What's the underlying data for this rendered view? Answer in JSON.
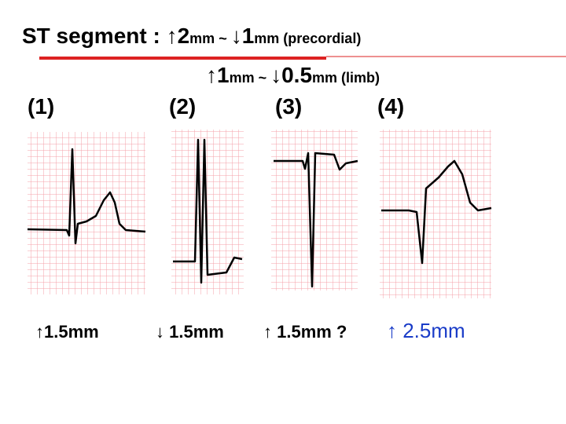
{
  "title": {
    "line1": [
      "ST segment : ↑2",
      "mm",
      " ~ ",
      "↓1",
      "mm (precordial)"
    ],
    "line2": [
      "↑1",
      "mm ~ ",
      "↓0.5",
      "mm (limb)"
    ]
  },
  "panels": [
    {
      "label": "(1)",
      "caption": "↑1.5mm"
    },
    {
      "label": "(2)",
      "caption": "↓ 1.5mm"
    },
    {
      "label": "(3)",
      "caption": "↑ 1.5mm ?"
    },
    {
      "label": "(4)",
      "caption": "↑ 2.5mm"
    }
  ]
}
